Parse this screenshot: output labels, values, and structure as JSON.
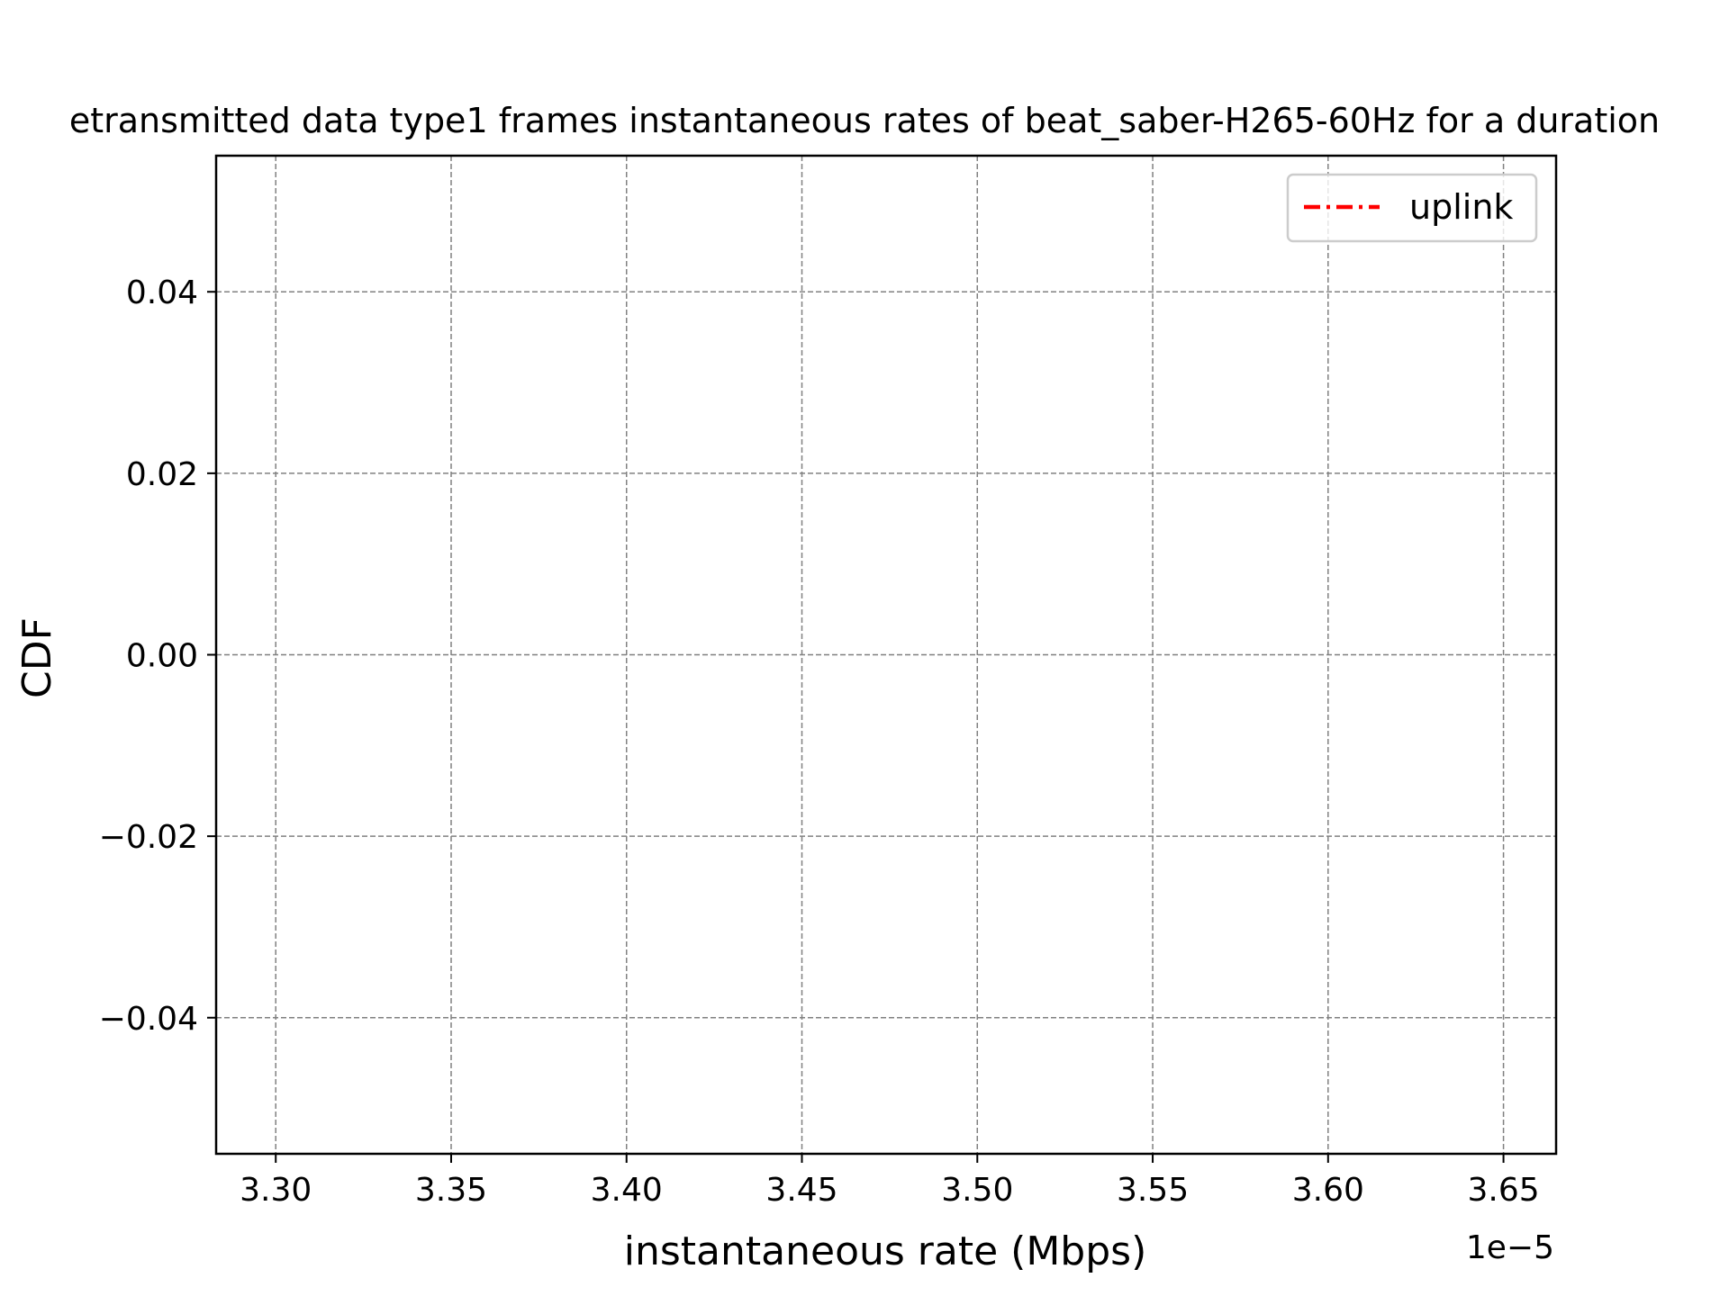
{
  "chart_data": {
    "type": "line",
    "title": "etransmitted data type1 frames instantaneous rates of beat_saber-H265-60Hz for a duration",
    "xlabel": "instantaneous rate (Mbps)",
    "ylabel": "CDF",
    "x_offset_label": "1e−5",
    "xlim": [
      3.283,
      3.665
    ],
    "ylim": [
      -0.055,
      0.055
    ],
    "x_ticks": [
      3.3,
      3.35,
      3.4,
      3.45,
      3.5,
      3.55,
      3.6,
      3.65
    ],
    "x_tick_labels": [
      "3.30",
      "3.35",
      "3.40",
      "3.45",
      "3.50",
      "3.55",
      "3.60",
      "3.65"
    ],
    "y_ticks": [
      0.04,
      0.02,
      0.0,
      -0.02,
      -0.04
    ],
    "y_tick_labels": [
      "0.04",
      "0.02",
      "0.00",
      "−0.02",
      "−0.04"
    ],
    "grid": true,
    "legend_position": "top-right",
    "series": [
      {
        "name": "uplink",
        "color": "#ff0000",
        "line_style": "dash-dot",
        "x": [],
        "y": []
      }
    ]
  }
}
